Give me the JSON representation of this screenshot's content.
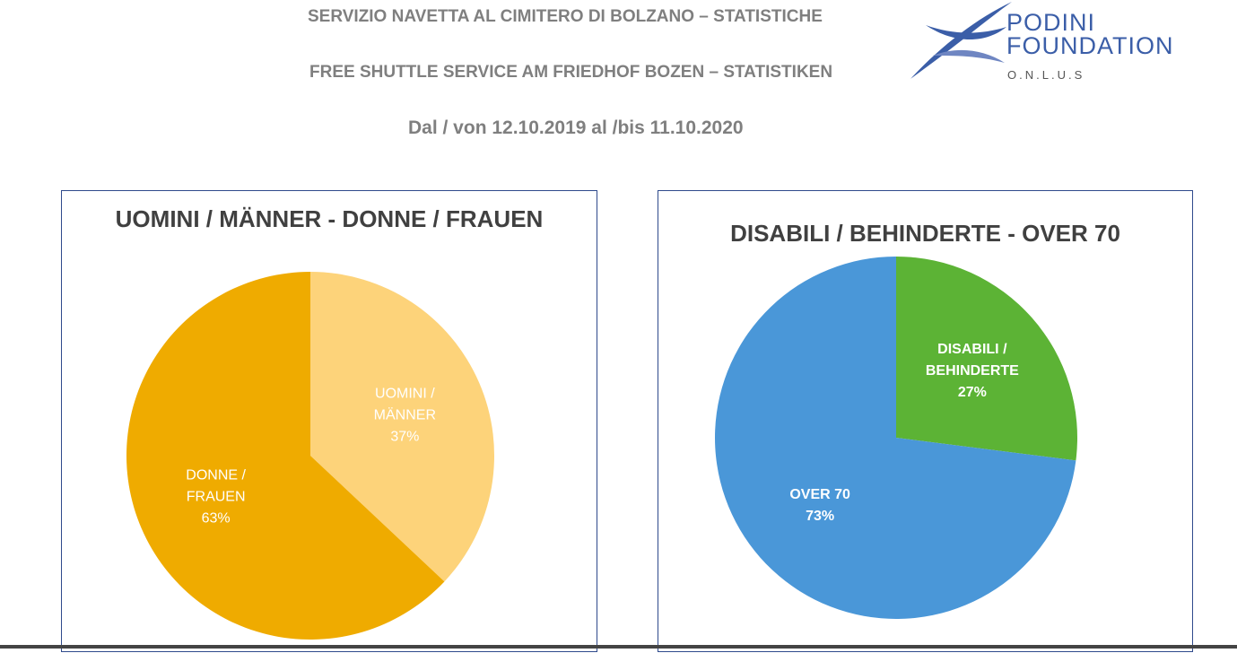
{
  "header": {
    "line1": "SERVIZIO NAVETTA AL CIMITERO DI BOLZANO – STATISTICHE",
    "line2": "FREE SHUTTLE SERVICE AM FRIEDHOF BOZEN – STATISTIKEN",
    "line3": "Dal / von 12.10.2019 al /bis 11.10.2020"
  },
  "logo": {
    "line1": "PODINI",
    "line2": "FOUNDATION",
    "line3": "O.N.L.U.S",
    "color": "#3b5ea8"
  },
  "chart_data": [
    {
      "type": "pie",
      "title": "UOMINI / MÄNNER - DONNE / FRAUEN",
      "slices": [
        {
          "label_lines": [
            "UOMINI /",
            "MÄNNER"
          ],
          "value": 37,
          "pct_label": "37%",
          "color": "#fdd37a"
        },
        {
          "label_lines": [
            "DONNE /",
            "FRAUEN"
          ],
          "value": 63,
          "pct_label": "63%",
          "color": "#efab00"
        }
      ]
    },
    {
      "type": "pie",
      "title": "DISABILI / BEHINDERTE - OVER 70",
      "slices": [
        {
          "label_lines": [
            "DISABILI /",
            "BEHINDERTE"
          ],
          "value": 27,
          "pct_label": "27%",
          "color": "#5cb335"
        },
        {
          "label_lines": [
            "OVER 70"
          ],
          "value": 73,
          "pct_label": "73%",
          "color": "#4a97d8"
        }
      ]
    }
  ]
}
